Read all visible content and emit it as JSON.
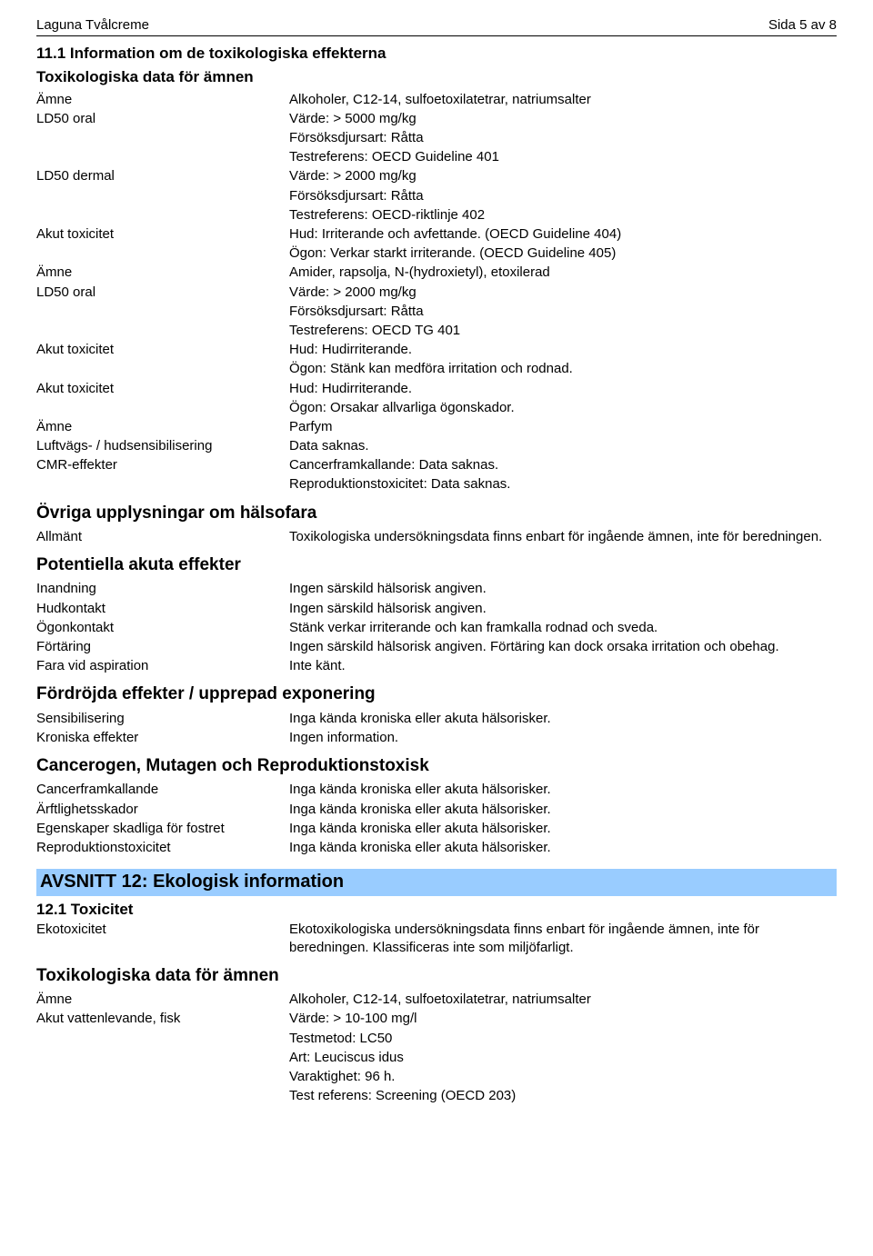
{
  "header": {
    "left": "Laguna Tvålcreme",
    "right": "Sida 5 av 8"
  },
  "section11": {
    "title": "11.1 Information om de toxikologiska effekterna",
    "toxDataHeading": "Toxikologiska data för ämnen",
    "rows": [
      {
        "k": "Ämne",
        "v": "Alkoholer, C12-14, sulfoetoxilatetrar, natriumsalter"
      },
      {
        "k": "LD50 oral",
        "v": "Värde: > 5000 mg/kg"
      },
      {
        "k": "",
        "v": "Försöksdjursart: Råtta"
      },
      {
        "k": "",
        "v": "Testreferens: OECD Guideline 401"
      },
      {
        "k": "LD50 dermal",
        "v": "Värde: > 2000 mg/kg"
      },
      {
        "k": "",
        "v": "Försöksdjursart: Råtta"
      },
      {
        "k": "",
        "v": "Testreferens: OECD-riktlinje 402"
      },
      {
        "k": "Akut toxicitet",
        "v": "Hud: Irriterande och avfettande. (OECD Guideline 404)"
      },
      {
        "k": "",
        "v": "Ögon: Verkar starkt irriterande. (OECD Guideline 405)"
      },
      {
        "k": "Ämne",
        "v": "Amider, rapsolja, N-(hydroxietyl), etoxilerad"
      },
      {
        "k": "LD50 oral",
        "v": "Värde: > 2000 mg/kg"
      },
      {
        "k": "",
        "v": "Försöksdjursart: Råtta"
      },
      {
        "k": "",
        "v": "Testreferens: OECD TG 401"
      },
      {
        "k": "Akut toxicitet",
        "v": "Hud: Hudirriterande."
      },
      {
        "k": "",
        "v": "Ögon: Stänk kan medföra irritation och rodnad."
      },
      {
        "k": "Akut toxicitet",
        "v": "Hud: Hudirriterande."
      },
      {
        "k": "",
        "v": "Ögon: Orsakar allvarliga ögonskador."
      },
      {
        "k": "Ämne",
        "v": "Parfym"
      },
      {
        "k": "Luftvägs- / hudsensibilisering",
        "v": "Data saknas."
      },
      {
        "k": "CMR-effekter",
        "v": "Cancerframkallande: Data saknas."
      },
      {
        "k": "",
        "v": "Reproduktionstoxicitet: Data saknas."
      }
    ],
    "ovrigaHeading": "Övriga upplysningar om hälsofara",
    "ovrigaRows": [
      {
        "k": "Allmänt",
        "v": "Toxikologiska undersökningsdata finns enbart för ingående ämnen, inte för beredningen."
      }
    ],
    "potentiellaHeading": "Potentiella akuta effekter",
    "potentiellaRows": [
      {
        "k": "Inandning",
        "v": "Ingen särskild hälsorisk angiven."
      },
      {
        "k": "Hudkontakt",
        "v": "Ingen särskild hälsorisk angiven."
      },
      {
        "k": "Ögonkontakt",
        "v": "Stänk verkar irriterande och kan framkalla rodnad och sveda."
      },
      {
        "k": "Förtäring",
        "v": "Ingen särskild hälsorisk angiven. Förtäring kan dock orsaka irritation och obehag."
      },
      {
        "k": "Fara vid aspiration",
        "v": "Inte känt."
      }
    ],
    "fordrojdaHeading": "Fördröjda effekter / upprepad exponering",
    "fordrojdaRows": [
      {
        "k": "Sensibilisering",
        "v": "Inga kända kroniska eller akuta hälsorisker."
      },
      {
        "k": "Kroniska effekter",
        "v": "Ingen information."
      }
    ],
    "cancerHeading": "Cancerogen, Mutagen och Reproduktionstoxisk",
    "cancerRows": [
      {
        "k": "Cancerframkallande",
        "v": "Inga kända kroniska eller akuta hälsorisker."
      },
      {
        "k": "Ärftlighetsskador",
        "v": "Inga kända kroniska eller akuta hälsorisker."
      },
      {
        "k": "Egenskaper skadliga för fostret",
        "v": "Inga kända kroniska eller akuta hälsorisker."
      },
      {
        "k": "Reproduktionstoxicitet",
        "v": "Inga kända kroniska eller akuta hälsorisker."
      }
    ]
  },
  "section12": {
    "avsnitt": "AVSNITT 12: Ekologisk information",
    "sub": "12.1 Toxicitet",
    "ekoRows": [
      {
        "k": "Ekotoxicitet",
        "v": "Ekotoxikologiska undersökningsdata finns enbart för ingående ämnen, inte för beredningen. Klassificeras inte som miljöfarligt."
      }
    ],
    "toxDataHeading": "Toxikologiska data för ämnen",
    "toxRows": [
      {
        "k": "Ämne",
        "v": "Alkoholer, C12-14, sulfoetoxilatetrar, natriumsalter"
      },
      {
        "k": "Akut vattenlevande, fisk",
        "v": "Värde: > 10-100 mg/l"
      },
      {
        "k": "",
        "v": "Testmetod: LC50"
      },
      {
        "k": "",
        "v": "Art: Leuciscus idus"
      },
      {
        "k": "",
        "v": "Varaktighet: 96 h."
      },
      {
        "k": "",
        "v": "Test referens: Screening (OECD 203)"
      }
    ]
  }
}
